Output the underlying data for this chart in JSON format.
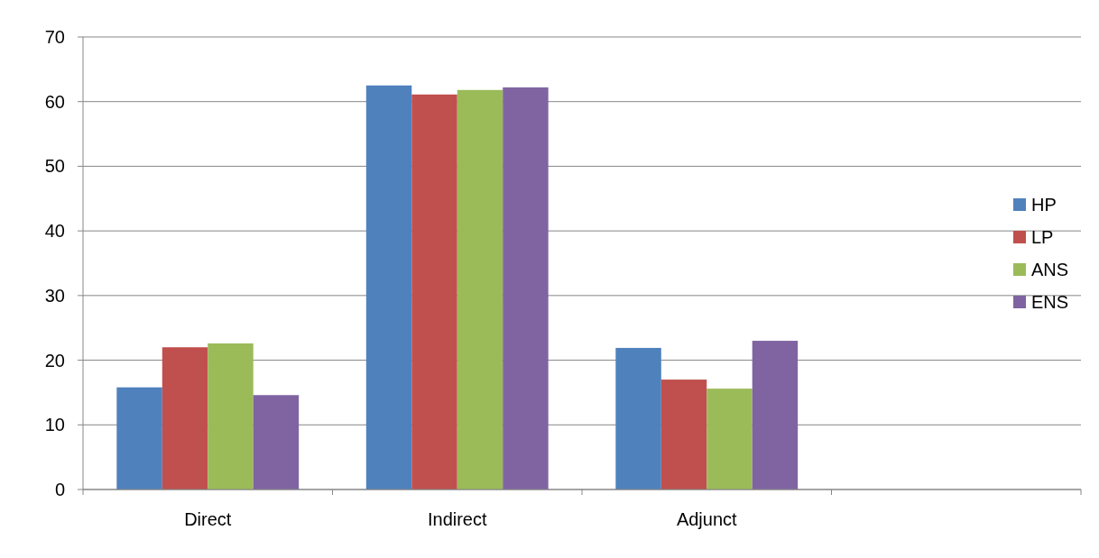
{
  "chart_data": {
    "type": "bar",
    "categories": [
      "Direct",
      "Indirect",
      "Adjunct",
      null
    ],
    "series": [
      {
        "name": "HP",
        "color": "#4f81bd",
        "values": [
          15.8,
          62.5,
          21.9,
          null
        ]
      },
      {
        "name": "LP",
        "color": "#c0504d",
        "values": [
          22.0,
          61.1,
          17.0,
          null
        ]
      },
      {
        "name": "ANS",
        "color": "#9bbb59",
        "values": [
          22.6,
          61.8,
          15.6,
          null
        ]
      },
      {
        "name": "ENS",
        "color": "#8064a2",
        "values": [
          14.6,
          62.2,
          23.0,
          null
        ]
      }
    ],
    "ylim": [
      0,
      70
    ],
    "yticks": [
      0,
      10,
      20,
      30,
      40,
      50,
      60,
      70
    ],
    "grid": "y",
    "legend": "right"
  }
}
